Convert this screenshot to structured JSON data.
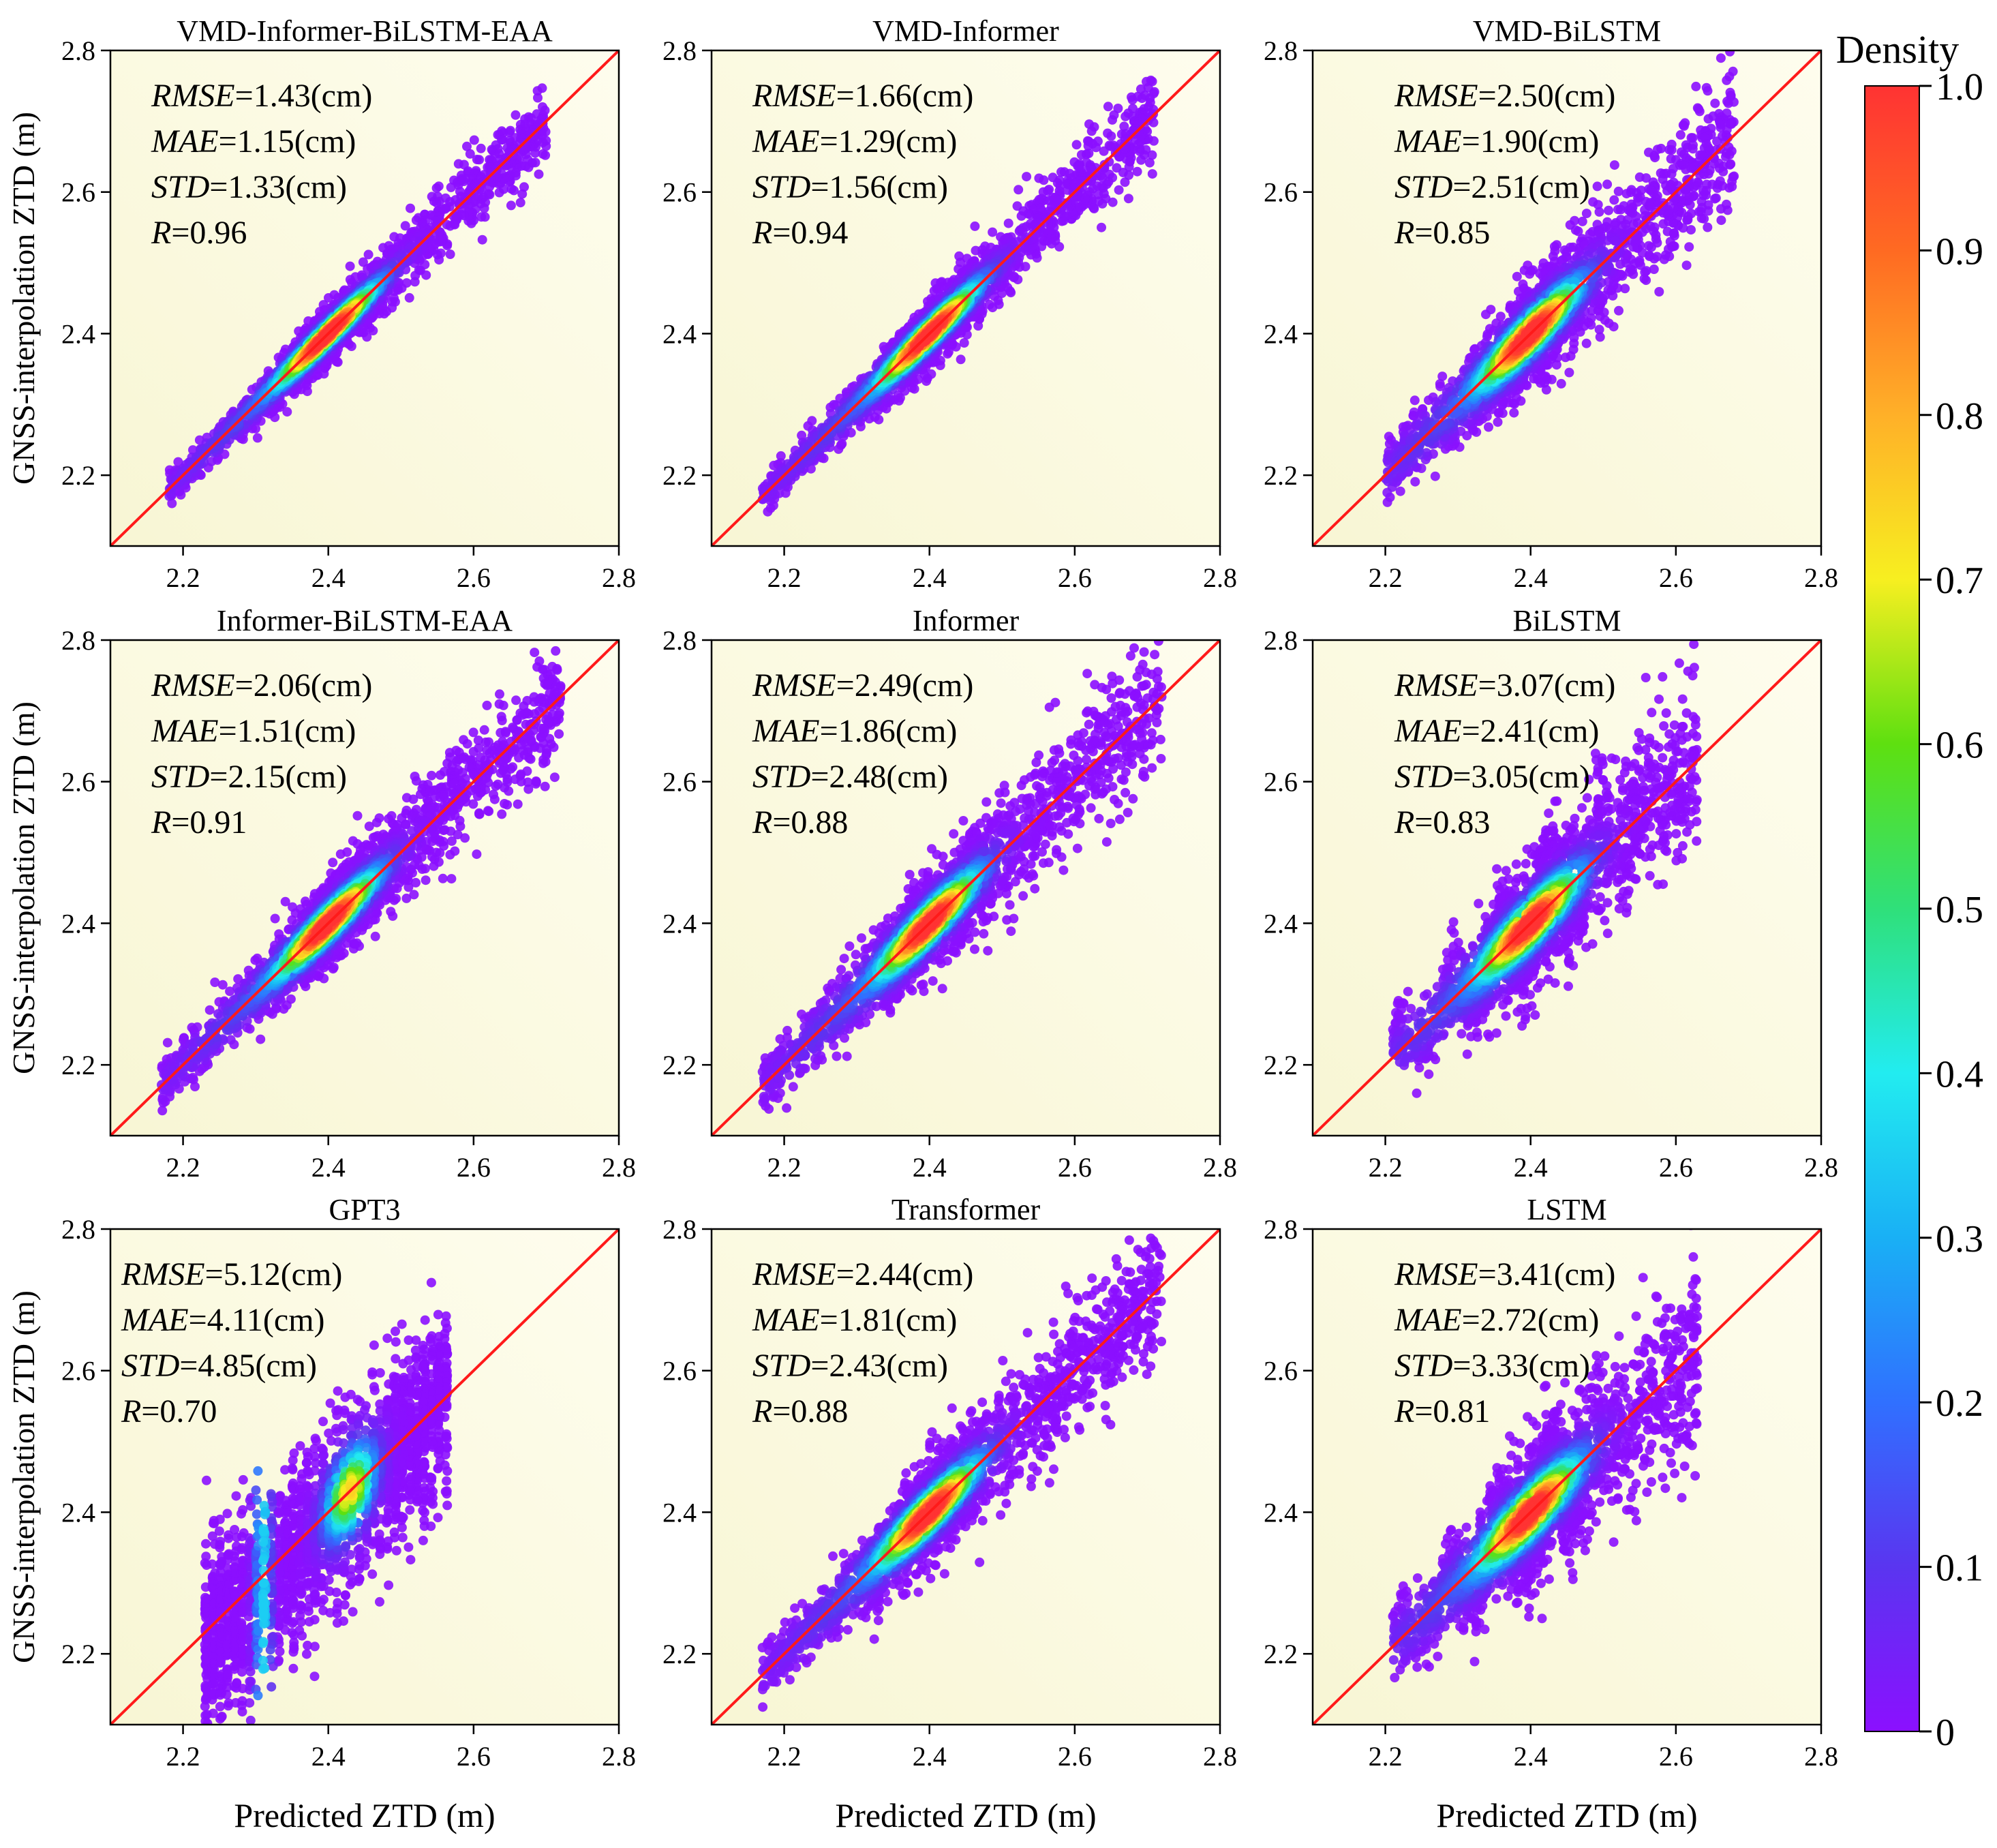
{
  "figure": {
    "x_axis_label": "Predicted ZTD (m)",
    "y_axis_label": "GNSS-interpolation ZTD (m)",
    "stat_labels": [
      "RMSE",
      "MAE",
      "STD",
      "R"
    ],
    "unit_suffix": "(cm)"
  },
  "colorbar": {
    "title": "Density",
    "ticks": [
      "0",
      "0.1",
      "0.2",
      "0.3",
      "0.4",
      "0.5",
      "0.6",
      "0.7",
      "0.8",
      "0.9",
      "1.0"
    ],
    "range": [
      0,
      1
    ],
    "colors": [
      "#8b10ff",
      "#5a35f0",
      "#3070ff",
      "#19b0f5",
      "#22ecf0",
      "#2fe07a",
      "#5ee010",
      "#f7ef20",
      "#ffb028",
      "#ff6a22",
      "#ff3333"
    ]
  },
  "colors": {
    "panel_bg": "#fbf9dc",
    "identity_line": "#ff1a1a",
    "sparse_points": "#8e14ff"
  },
  "chart_data": [
    {
      "type": "scatter",
      "title": "VMD-Informer-BiLSTM-EAA",
      "xlim": [
        2.1,
        2.8
      ],
      "ylim": [
        2.1,
        2.8
      ],
      "xticks": [
        "2.2",
        "2.4",
        "2.6",
        "2.8"
      ],
      "yticks": [
        "2.2",
        "2.4",
        "2.6",
        "2.8"
      ],
      "rmse": "1.43",
      "mae": "1.15",
      "std": "1.33",
      "r": "0.96",
      "x_range": [
        2.18,
        2.7
      ],
      "peak": 2.4,
      "spread": 0.02,
      "mode": "normal"
    },
    {
      "type": "scatter",
      "title": "VMD-Informer",
      "xlim": [
        2.1,
        2.8
      ],
      "ylim": [
        2.1,
        2.8
      ],
      "xticks": [
        "2.2",
        "2.4",
        "2.6",
        "2.8"
      ],
      "yticks": [
        "2.2",
        "2.4",
        "2.6",
        "2.8"
      ],
      "rmse": "1.66",
      "mae": "1.29",
      "std": "1.56",
      "r": "0.94",
      "x_range": [
        2.17,
        2.71
      ],
      "peak": 2.4,
      "spread": 0.023,
      "mode": "normal"
    },
    {
      "type": "scatter",
      "title": "VMD-BiLSTM",
      "xlim": [
        2.1,
        2.8
      ],
      "ylim": [
        2.1,
        2.8
      ],
      "xticks": [
        "2.2",
        "2.4",
        "2.6",
        "2.8"
      ],
      "yticks": [
        "2.2",
        "2.4",
        "2.6",
        "2.8"
      ],
      "rmse": "2.50",
      "mae": "1.90",
      "std": "2.51",
      "r": "0.85",
      "x_range": [
        2.2,
        2.68
      ],
      "peak": 2.4,
      "spread": 0.036,
      "mode": "normal"
    },
    {
      "type": "scatter",
      "title": "Informer-BiLSTM-EAA",
      "xlim": [
        2.1,
        2.8
      ],
      "ylim": [
        2.1,
        2.8
      ],
      "xticks": [
        "2.2",
        "2.4",
        "2.6",
        "2.8"
      ],
      "yticks": [
        "2.2",
        "2.4",
        "2.6",
        "2.8"
      ],
      "rmse": "2.06",
      "mae": "1.51",
      "std": "2.15",
      "r": "0.91",
      "x_range": [
        2.17,
        2.72
      ],
      "peak": 2.4,
      "spread": 0.03,
      "mode": "normal"
    },
    {
      "type": "scatter",
      "title": "Informer",
      "xlim": [
        2.1,
        2.8
      ],
      "ylim": [
        2.1,
        2.8
      ],
      "xticks": [
        "2.2",
        "2.4",
        "2.6",
        "2.8"
      ],
      "yticks": [
        "2.2",
        "2.4",
        "2.6",
        "2.8"
      ],
      "rmse": "2.49",
      "mae": "1.86",
      "std": "2.48",
      "r": "0.88",
      "x_range": [
        2.17,
        2.72
      ],
      "peak": 2.4,
      "spread": 0.035,
      "mode": "normal"
    },
    {
      "type": "scatter",
      "title": "BiLSTM",
      "xlim": [
        2.1,
        2.8
      ],
      "ylim": [
        2.1,
        2.8
      ],
      "xticks": [
        "2.2",
        "2.4",
        "2.6",
        "2.8"
      ],
      "yticks": [
        "2.2",
        "2.4",
        "2.6",
        "2.8"
      ],
      "rmse": "3.07",
      "mae": "2.41",
      "std": "3.05",
      "r": "0.83",
      "x_range": [
        2.21,
        2.63
      ],
      "peak": 2.4,
      "spread": 0.042,
      "mode": "banded"
    },
    {
      "type": "scatter",
      "title": "GPT3",
      "xlim": [
        2.1,
        2.8
      ],
      "ylim": [
        2.1,
        2.8
      ],
      "xticks": [
        "2.2",
        "2.4",
        "2.6",
        "2.8"
      ],
      "yticks": [
        "2.2",
        "2.4",
        "2.6",
        "2.8"
      ],
      "rmse": "5.12",
      "mae": "4.11",
      "std": "4.85",
      "r": "0.70",
      "x_range": [
        2.23,
        2.57
      ],
      "peak": 2.43,
      "spread": 0.06,
      "mode": "columns"
    },
    {
      "type": "scatter",
      "title": "Transformer",
      "xlim": [
        2.1,
        2.8
      ],
      "ylim": [
        2.1,
        2.8
      ],
      "xticks": [
        "2.2",
        "2.4",
        "2.6",
        "2.8"
      ],
      "yticks": [
        "2.2",
        "2.4",
        "2.6",
        "2.8"
      ],
      "rmse": "2.44",
      "mae": "1.81",
      "std": "2.43",
      "r": "0.88",
      "x_range": [
        2.17,
        2.72
      ],
      "peak": 2.4,
      "spread": 0.035,
      "mode": "normal"
    },
    {
      "type": "scatter",
      "title": "LSTM",
      "xlim": [
        2.1,
        2.8
      ],
      "ylim": [
        2.1,
        2.8
      ],
      "xticks": [
        "2.2",
        "2.4",
        "2.6",
        "2.8"
      ],
      "yticks": [
        "2.2",
        "2.4",
        "2.6",
        "2.8"
      ],
      "rmse": "3.41",
      "mae": "2.72",
      "std": "3.33",
      "r": "0.81",
      "x_range": [
        2.21,
        2.63
      ],
      "peak": 2.4,
      "spread": 0.045,
      "mode": "banded"
    }
  ]
}
